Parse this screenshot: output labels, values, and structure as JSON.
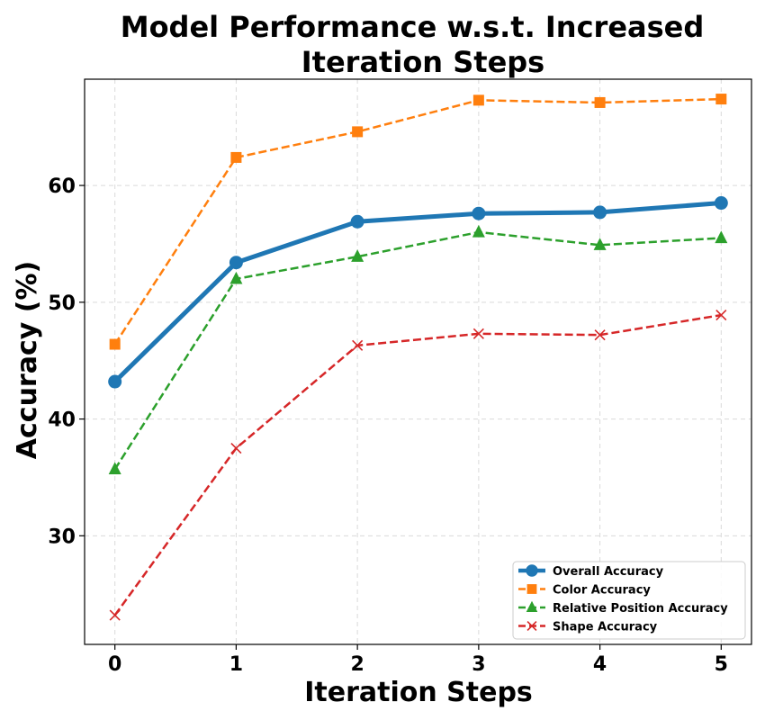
{
  "chart_data": {
    "type": "line",
    "title_lines": [
      "Model Performance w.s.t. Increased",
      "Iteration Steps"
    ],
    "xlabel": "Iteration Steps",
    "ylabel": "Accuracy (%)",
    "x": [
      0,
      1,
      2,
      3,
      4,
      5
    ],
    "x_tick_labels": [
      "0",
      "1",
      "2",
      "3",
      "4",
      "5"
    ],
    "xlim": [
      -0.25,
      5.25
    ],
    "ylim": [
      20.7,
      69.1
    ],
    "y_ticks": [
      30,
      40,
      50,
      60
    ],
    "y_tick_labels": [
      "30",
      "40",
      "50",
      "60"
    ],
    "grid": true,
    "legend_placement": "lower-right",
    "series": [
      {
        "name": "Overall Accuracy",
        "values": [
          43.2,
          53.4,
          56.9,
          57.6,
          57.7,
          58.5
        ],
        "color": "#1f77b4",
        "marker": "circle",
        "dashed": false
      },
      {
        "name": "Color Accuracy",
        "values": [
          46.4,
          62.4,
          64.6,
          67.3,
          67.1,
          67.4
        ],
        "color": "#ff7f0e",
        "marker": "square",
        "dashed": true
      },
      {
        "name": "Relative Position Accuracy",
        "values": [
          35.7,
          52.0,
          53.9,
          56.0,
          54.9,
          55.5
        ],
        "color": "#2ca02c",
        "marker": "triangle",
        "dashed": true
      },
      {
        "name": "Shape Accuracy",
        "values": [
          23.2,
          37.5,
          46.3,
          47.3,
          47.2,
          48.9
        ],
        "color": "#d62728",
        "marker": "x",
        "dashed": true
      }
    ]
  }
}
